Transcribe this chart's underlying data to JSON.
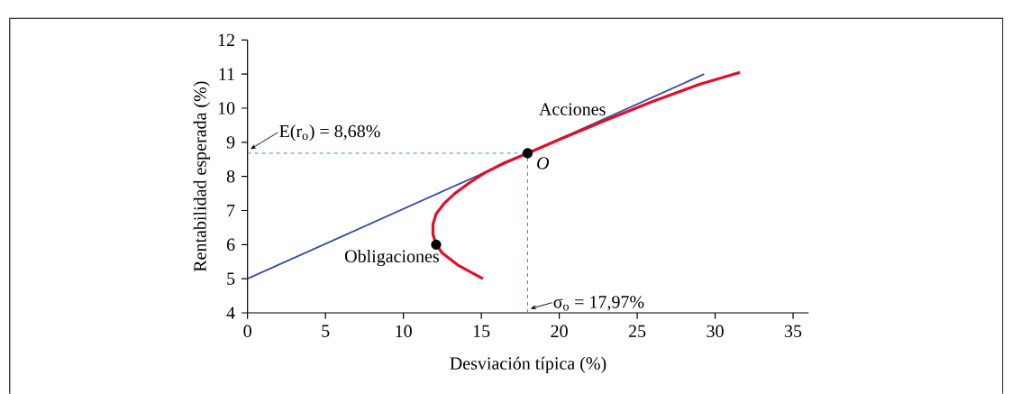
{
  "chart_data": {
    "type": "line",
    "xlabel": "Desviación típica (%)",
    "ylabel": "Rentabilidad esperada (%)",
    "xlim": [
      0,
      36
    ],
    "ylim": [
      4,
      12
    ],
    "xticks": [
      0,
      5,
      10,
      15,
      20,
      25,
      30,
      35
    ],
    "yticks": [
      4,
      5,
      6,
      7,
      8,
      9,
      10,
      11,
      12
    ],
    "grid": false,
    "series": [
      {
        "color": "#3a4fa0",
        "x": [
          0,
          29.3
        ],
        "values": [
          5,
          11
        ]
      },
      {
        "color": "#e0102a",
        "x": [
          15.1,
          13.5,
          12.5,
          12.1,
          11.9,
          11.9,
          12.1,
          12.6,
          13.3,
          14.2,
          15.2,
          16.5,
          17.97,
          20,
          23,
          26,
          29,
          31.6
        ],
        "values": [
          5.0,
          5.4,
          5.75,
          6.0,
          6.3,
          6.6,
          6.9,
          7.2,
          7.5,
          7.8,
          8.1,
          8.4,
          8.68,
          9.08,
          9.65,
          10.2,
          10.7,
          11.05
        ]
      },
      {
        "type": "scatter",
        "color": "#000000",
        "marker": "circle",
        "x": [
          17.97,
          12.1
        ],
        "values": [
          8.68,
          6.0
        ]
      }
    ],
    "ref_lines": [
      {
        "axis": "y",
        "value": 8.68,
        "color": "#3a7fc0",
        "line_style": "dashed"
      },
      {
        "axis": "x",
        "value": 17.97,
        "color": "#3a7fc0",
        "line_style": "dashed"
      }
    ],
    "annotations": [
      {
        "text": "E(r$_{o}$)  = 8,68%",
        "x": 0,
        "y": 8.68
      },
      {
        "text": "σ$_{o}$ = 17,97%",
        "x": 17.97,
        "y": 4
      },
      "Acciones",
      {
        "text": "O",
        "x": 17.97,
        "y": 8.68
      },
      {
        "text": "Obligaciones",
        "x": 12.1,
        "y": 6.0
      }
    ]
  }
}
